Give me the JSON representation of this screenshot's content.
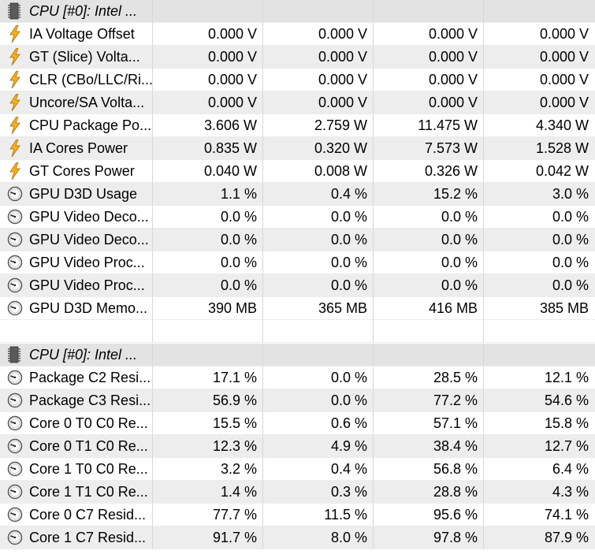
{
  "sections": [
    {
      "header": "CPU [#0]: Intel ...",
      "header_icon": "chip-icon",
      "rows": [
        {
          "icon": "lightning-icon",
          "label": "IA Voltage Offset",
          "values": [
            "0.000 V",
            "0.000 V",
            "0.000 V",
            "0.000 V"
          ]
        },
        {
          "icon": "lightning-icon",
          "label": "GT (Slice) Volta...",
          "values": [
            "0.000 V",
            "0.000 V",
            "0.000 V",
            "0.000 V"
          ]
        },
        {
          "icon": "lightning-icon",
          "label": "CLR (CBo/LLC/Ri...",
          "values": [
            "0.000 V",
            "0.000 V",
            "0.000 V",
            "0.000 V"
          ]
        },
        {
          "icon": "lightning-icon",
          "label": "Uncore/SA Volta...",
          "values": [
            "0.000 V",
            "0.000 V",
            "0.000 V",
            "0.000 V"
          ]
        },
        {
          "icon": "lightning-icon",
          "label": "CPU Package Po...",
          "values": [
            "3.606 W",
            "2.759 W",
            "11.475 W",
            "4.340 W"
          ]
        },
        {
          "icon": "lightning-icon",
          "label": "IA Cores Power",
          "values": [
            "0.835 W",
            "0.320 W",
            "7.573 W",
            "1.528 W"
          ]
        },
        {
          "icon": "lightning-icon",
          "label": "GT Cores Power",
          "values": [
            "0.040 W",
            "0.008 W",
            "0.326 W",
            "0.042 W"
          ]
        },
        {
          "icon": "gauge-icon",
          "label": "GPU D3D Usage",
          "values": [
            "1.1 %",
            "0.4 %",
            "15.2 %",
            "3.0 %"
          ]
        },
        {
          "icon": "gauge-icon",
          "label": "GPU Video Deco...",
          "values": [
            "0.0 %",
            "0.0 %",
            "0.0 %",
            "0.0 %"
          ]
        },
        {
          "icon": "gauge-icon",
          "label": "GPU Video Deco...",
          "values": [
            "0.0 %",
            "0.0 %",
            "0.0 %",
            "0.0 %"
          ]
        },
        {
          "icon": "gauge-icon",
          "label": "GPU Video Proc...",
          "values": [
            "0.0 %",
            "0.0 %",
            "0.0 %",
            "0.0 %"
          ]
        },
        {
          "icon": "gauge-icon",
          "label": "GPU Video Proc...",
          "values": [
            "0.0 %",
            "0.0 %",
            "0.0 %",
            "0.0 %"
          ]
        },
        {
          "icon": "gauge-icon",
          "label": "GPU D3D Memo...",
          "values": [
            "390 MB",
            "365 MB",
            "416 MB",
            "385 MB"
          ]
        }
      ]
    },
    {
      "header": "CPU [#0]: Intel ...",
      "header_icon": "chip-icon",
      "rows": [
        {
          "icon": "gauge-icon",
          "label": "Package C2 Resi...",
          "values": [
            "17.1 %",
            "0.0 %",
            "28.5 %",
            "12.1 %"
          ]
        },
        {
          "icon": "gauge-icon",
          "label": "Package C3 Resi...",
          "values": [
            "56.9 %",
            "0.0 %",
            "77.2 %",
            "54.6 %"
          ]
        },
        {
          "icon": "gauge-icon",
          "label": "Core 0 T0 C0 Re...",
          "values": [
            "15.5 %",
            "0.6 %",
            "57.1 %",
            "15.8 %"
          ]
        },
        {
          "icon": "gauge-icon",
          "label": "Core 0 T1 C0 Re...",
          "values": [
            "12.3 %",
            "4.9 %",
            "38.4 %",
            "12.7 %"
          ]
        },
        {
          "icon": "gauge-icon",
          "label": "Core 1 T0 C0 Re...",
          "values": [
            "3.2 %",
            "0.4 %",
            "56.8 %",
            "6.4 %"
          ]
        },
        {
          "icon": "gauge-icon",
          "label": "Core 1 T1 C0 Re...",
          "values": [
            "1.4 %",
            "0.3 %",
            "28.8 %",
            "4.3 %"
          ]
        },
        {
          "icon": "gauge-icon",
          "label": "Core 0 C7 Resid...",
          "values": [
            "77.7 %",
            "11.5 %",
            "95.6 %",
            "74.1 %"
          ]
        },
        {
          "icon": "gauge-icon",
          "label": "Core 1 C7 Resid...",
          "values": [
            "91.7 %",
            "8.0 %",
            "97.8 %",
            "87.9 %"
          ]
        }
      ]
    }
  ],
  "colors": {
    "row_alt": "#ededed",
    "header_bg": "#e3e3e3",
    "bolt_fill": "#f6b21b",
    "bolt_stroke": "#b06a00"
  }
}
